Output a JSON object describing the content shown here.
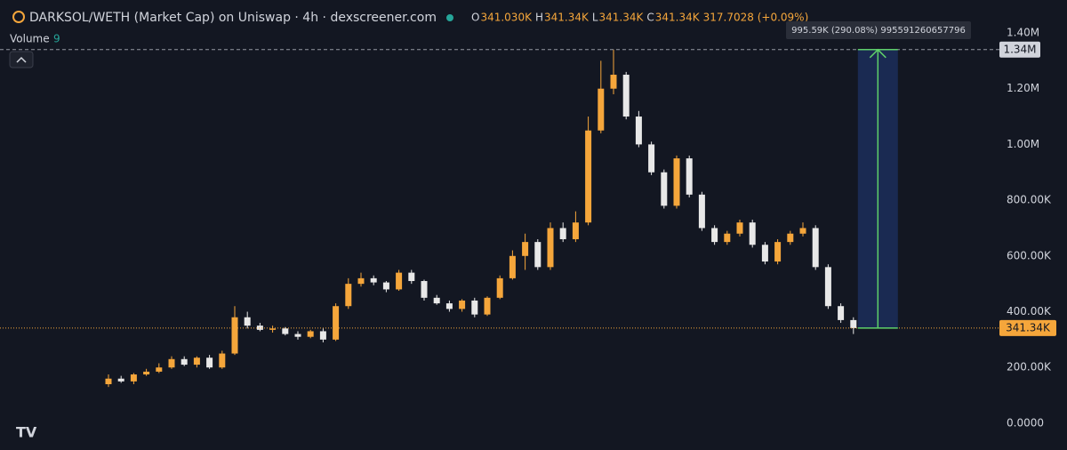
{
  "chart_data": {
    "type": "candlestick",
    "title": "DARKSOL/WETH (Market Cap) on Uniswap · 4h · dexscreener.com",
    "ohlc_header": {
      "o_label": "O",
      "o": "341.030K",
      "h_label": "H",
      "h": "341.34K",
      "l_label": "L",
      "l": "341.34K",
      "c_label": "C",
      "c": "341.34K",
      "change": "317.7028 (+0.09%)"
    },
    "volume_label": "Volume",
    "volume_value": "9",
    "up_color": "#f5a63b",
    "down_color": "#e8e8e8",
    "open": [
      140000,
      160000,
      150000,
      175000,
      185000,
      200000,
      230000,
      210000,
      235000,
      200000,
      250000,
      380000,
      350000,
      335000,
      340000,
      320000,
      310000,
      330000,
      300000,
      420000,
      500000,
      520000,
      505000,
      480000,
      540000,
      510000,
      450000,
      430000,
      410000,
      440000,
      390000,
      450000,
      520000,
      600000,
      650000,
      560000,
      700000,
      660000,
      720000,
      1050000,
      1200000,
      1250000,
      1100000,
      1000000,
      900000,
      780000,
      950000,
      820000,
      700000,
      650000,
      680000,
      720000,
      640000,
      580000,
      650000,
      680000,
      700000,
      560000,
      420000,
      370000
    ],
    "high": [
      175000,
      170000,
      180000,
      195000,
      215000,
      240000,
      240000,
      240000,
      245000,
      260000,
      420000,
      400000,
      360000,
      350000,
      345000,
      330000,
      335000,
      340000,
      430000,
      520000,
      540000,
      530000,
      510000,
      550000,
      550000,
      515000,
      460000,
      440000,
      445000,
      450000,
      455000,
      530000,
      620000,
      680000,
      660000,
      720000,
      720000,
      760000,
      1100000,
      1300000,
      1340000,
      1260000,
      1120000,
      1010000,
      910000,
      960000,
      960000,
      830000,
      710000,
      690000,
      730000,
      730000,
      650000,
      660000,
      690000,
      720000,
      710000,
      570000,
      430000,
      380000
    ],
    "low": [
      130000,
      145000,
      140000,
      170000,
      180000,
      195000,
      205000,
      200000,
      195000,
      195000,
      245000,
      340000,
      330000,
      325000,
      315000,
      300000,
      305000,
      290000,
      295000,
      410000,
      490000,
      495000,
      470000,
      475000,
      500000,
      440000,
      425000,
      400000,
      400000,
      380000,
      385000,
      445000,
      515000,
      550000,
      550000,
      550000,
      650000,
      650000,
      710000,
      1040000,
      1180000,
      1090000,
      990000,
      890000,
      770000,
      770000,
      810000,
      690000,
      640000,
      640000,
      670000,
      630000,
      570000,
      570000,
      640000,
      670000,
      550000,
      410000,
      360000,
      320000
    ],
    "close": [
      160000,
      150000,
      175000,
      185000,
      200000,
      230000,
      210000,
      235000,
      200000,
      250000,
      380000,
      350000,
      335000,
      340000,
      320000,
      310000,
      330000,
      300000,
      420000,
      500000,
      520000,
      505000,
      480000,
      540000,
      510000,
      450000,
      430000,
      410000,
      440000,
      390000,
      450000,
      520000,
      600000,
      650000,
      560000,
      700000,
      660000,
      720000,
      1050000,
      1200000,
      1250000,
      1100000,
      1000000,
      900000,
      780000,
      950000,
      820000,
      700000,
      650000,
      680000,
      720000,
      640000,
      580000,
      650000,
      680000,
      700000,
      560000,
      420000,
      370000,
      341340
    ],
    "ylim": [
      -96000,
      1518000
    ],
    "yticks": [
      {
        "value": 0,
        "label": "0.0000"
      },
      {
        "value": 200000,
        "label": "200.00K"
      },
      {
        "value": 400000,
        "label": "400.00K"
      },
      {
        "value": 600000,
        "label": "600.00K"
      },
      {
        "value": 800000,
        "label": "800.00K"
      },
      {
        "value": 1000000,
        "label": "1.00M"
      },
      {
        "value": 1200000,
        "label": "1.20M"
      },
      {
        "value": 1400000,
        "label": "1.40M"
      }
    ],
    "high_marker": {
      "value": 1340000,
      "label": "1.34M"
    },
    "last_price": {
      "value": 341340,
      "label": "341.34K"
    },
    "measure_label": "995.59K (290.08%) 995591260657796"
  }
}
